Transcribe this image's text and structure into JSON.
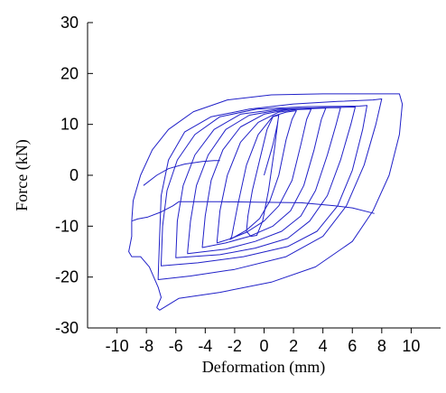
{
  "chart_data": {
    "type": "line",
    "title": "",
    "xlabel": "Deformation (mm)",
    "ylabel": "Force (kN)",
    "xlim": [
      -12,
      12
    ],
    "ylim": [
      -30,
      30
    ],
    "xticks": [
      -10,
      -8,
      -6,
      -4,
      -2,
      0,
      2,
      4,
      6,
      8,
      10
    ],
    "yticks": [
      -30,
      -20,
      -10,
      0,
      10,
      20,
      30
    ],
    "grid": false,
    "line_color": "#2020c8",
    "series": [
      {
        "points": [
          [
            0,
            0
          ],
          [
            0.6,
            6
          ],
          [
            0.9,
            10
          ],
          [
            1.0,
            11.8
          ],
          [
            0.6,
            11.5
          ],
          [
            0.2,
            9
          ],
          [
            -0.3,
            3
          ],
          [
            -0.8,
            -3
          ],
          [
            -1.1,
            -8
          ],
          [
            -1.2,
            -11
          ],
          [
            -0.9,
            -12
          ],
          [
            -0.5,
            -11.8
          ],
          [
            -0.1,
            -9
          ],
          [
            0.3,
            -3
          ],
          [
            0.7,
            5
          ],
          [
            1.0,
            12
          ]
        ]
      },
      {
        "points": [
          [
            -2.2,
            -12
          ],
          [
            -1.8,
            -6
          ],
          [
            -1.2,
            2
          ],
          [
            -0.4,
            8
          ],
          [
            0.6,
            11.6
          ],
          [
            1.5,
            12.4
          ],
          [
            2.2,
            12.7
          ],
          [
            1.9,
            11
          ],
          [
            1.5,
            7
          ],
          [
            1.0,
            0
          ],
          [
            0.4,
            -5
          ],
          [
            -0.3,
            -8.5
          ],
          [
            -1.2,
            -10.8
          ],
          [
            -2.0,
            -12.1
          ],
          [
            -2.3,
            -12.6
          ],
          [
            -2.2,
            -12
          ]
        ]
      },
      {
        "points": [
          [
            -3.2,
            -13
          ],
          [
            -3.0,
            -7
          ],
          [
            -2.5,
            0
          ],
          [
            -1.6,
            6.5
          ],
          [
            -0.4,
            10.4
          ],
          [
            1.0,
            12.4
          ],
          [
            2.2,
            12.9
          ],
          [
            3.2,
            13
          ],
          [
            2.9,
            11
          ],
          [
            2.5,
            6
          ],
          [
            1.9,
            -1
          ],
          [
            1.0,
            -6
          ],
          [
            0,
            -9
          ],
          [
            -1.2,
            -11.2
          ],
          [
            -2.3,
            -12.5
          ],
          [
            -3.2,
            -13.3
          ],
          [
            -3.2,
            -13
          ]
        ]
      },
      {
        "points": [
          [
            -4.2,
            -14
          ],
          [
            -4.0,
            -8
          ],
          [
            -3.6,
            -1
          ],
          [
            -2.8,
            5
          ],
          [
            -1.6,
            9.5
          ],
          [
            0,
            12
          ],
          [
            1.6,
            12.9
          ],
          [
            3.2,
            13.1
          ],
          [
            4.2,
            13.2
          ],
          [
            3.9,
            11
          ],
          [
            3.4,
            5
          ],
          [
            2.7,
            -2
          ],
          [
            1.8,
            -7
          ],
          [
            0.6,
            -10
          ],
          [
            -1.0,
            -12
          ],
          [
            -2.6,
            -13.3
          ],
          [
            -4.2,
            -14.2
          ],
          [
            -4.2,
            -14
          ]
        ]
      },
      {
        "points": [
          [
            -5.2,
            -15
          ],
          [
            -5.0,
            -9
          ],
          [
            -4.6,
            -2
          ],
          [
            -3.8,
            4
          ],
          [
            -2.6,
            9
          ],
          [
            -1,
            11.8
          ],
          [
            1,
            12.8
          ],
          [
            3,
            13.2
          ],
          [
            5.2,
            13.3
          ],
          [
            4.9,
            10
          ],
          [
            4.3,
            4
          ],
          [
            3.5,
            -3
          ],
          [
            2.5,
            -8
          ],
          [
            1.2,
            -11
          ],
          [
            -0.6,
            -13
          ],
          [
            -2.6,
            -14.5
          ],
          [
            -5.2,
            -15.4
          ],
          [
            -5.2,
            -15
          ]
        ]
      },
      {
        "points": [
          [
            -6.0,
            -16
          ],
          [
            -5.9,
            -9
          ],
          [
            -5.5,
            -2
          ],
          [
            -4.7,
            4
          ],
          [
            -3.4,
            9
          ],
          [
            -1.6,
            12
          ],
          [
            1,
            13
          ],
          [
            4,
            13.3
          ],
          [
            6.2,
            13.4
          ],
          [
            5.9,
            10
          ],
          [
            5.2,
            3
          ],
          [
            4.3,
            -4
          ],
          [
            3.1,
            -9
          ],
          [
            1.6,
            -12.4
          ],
          [
            -0.6,
            -14.3
          ],
          [
            -3,
            -15.6
          ],
          [
            -6.0,
            -16.2
          ],
          [
            -6.0,
            -16
          ]
        ]
      },
      {
        "points": [
          [
            -7.0,
            -17.5
          ],
          [
            -6.9,
            -10
          ],
          [
            -6.6,
            -3
          ],
          [
            -5.9,
            3
          ],
          [
            -4.7,
            8
          ],
          [
            -3,
            11.5
          ],
          [
            -0.5,
            13
          ],
          [
            3,
            13.5
          ],
          [
            6.5,
            13.6
          ],
          [
            7.0,
            13.7
          ],
          [
            6.7,
            9
          ],
          [
            6.0,
            1
          ],
          [
            5.0,
            -6
          ],
          [
            3.6,
            -11
          ],
          [
            1.6,
            -14
          ],
          [
            -1.4,
            -16
          ],
          [
            -4.5,
            -17.2
          ],
          [
            -7.0,
            -17.8
          ],
          [
            -7.0,
            -17.5
          ]
        ]
      },
      {
        "points": [
          [
            -7.2,
            -20
          ],
          [
            -7.1,
            -12
          ],
          [
            -7.0,
            -4
          ],
          [
            -6.5,
            3
          ],
          [
            -5.4,
            8.5
          ],
          [
            -3.6,
            11.5
          ],
          [
            -1,
            13
          ],
          [
            2,
            14
          ],
          [
            5,
            14.5
          ],
          [
            7.4,
            14.8
          ],
          [
            8.0,
            15
          ],
          [
            7.6,
            10
          ],
          [
            6.8,
            2
          ],
          [
            5.6,
            -6
          ],
          [
            4.0,
            -12
          ],
          [
            1.5,
            -16
          ],
          [
            -2,
            -18.5
          ],
          [
            -5,
            -19.8
          ],
          [
            -7.2,
            -20.5
          ],
          [
            -7.2,
            -20
          ]
        ]
      },
      {
        "points": [
          [
            -9.0,
            -9
          ],
          [
            -8.9,
            -5
          ],
          [
            -8.4,
            0
          ],
          [
            -7.6,
            5
          ],
          [
            -6.5,
            9
          ],
          [
            -4.8,
            12.5
          ],
          [
            -2.5,
            14.8
          ],
          [
            0.5,
            15.8
          ],
          [
            4,
            16
          ],
          [
            7.5,
            16
          ],
          [
            9.2,
            16
          ],
          [
            9.4,
            14
          ],
          [
            9.2,
            8
          ],
          [
            8.5,
            0
          ],
          [
            7.4,
            -7
          ],
          [
            6.0,
            -13
          ],
          [
            3.5,
            -18
          ],
          [
            0.5,
            -21
          ],
          [
            -3,
            -23
          ],
          [
            -5.8,
            -24.2
          ],
          [
            -7.1,
            -26.5
          ],
          [
            -7.3,
            -26
          ]
        ]
      },
      {
        "points": [
          [
            -7.3,
            -26
          ],
          [
            -7.0,
            -24
          ],
          [
            -7.2,
            -22
          ],
          [
            -7.8,
            -18
          ],
          [
            -8.4,
            -16
          ],
          [
            -9.0,
            -16
          ],
          [
            -9.2,
            -15
          ],
          [
            -9.0,
            -12
          ],
          [
            -9.0,
            -9
          ]
        ]
      },
      {
        "points": [
          [
            -9.0,
            -9
          ],
          [
            -8.6,
            -8.6
          ],
          [
            -7.9,
            -8.2
          ],
          [
            -7.0,
            -7.2
          ],
          [
            -6.2,
            -6
          ],
          [
            -5.8,
            -5.2
          ],
          [
            -3,
            -5.2
          ],
          [
            0,
            -5.3
          ],
          [
            2.5,
            -5.4
          ],
          [
            4.8,
            -6
          ],
          [
            6.0,
            -6.4
          ],
          [
            7.5,
            -7.5
          ]
        ]
      },
      {
        "points": [
          [
            -8.2,
            -2
          ],
          [
            -7.3,
            0
          ],
          [
            -6.5,
            1.3
          ],
          [
            -5.4,
            2.2
          ],
          [
            -4.2,
            2.7
          ],
          [
            -3.4,
            2.9
          ],
          [
            -3.0,
            2.9
          ]
        ]
      }
    ]
  }
}
